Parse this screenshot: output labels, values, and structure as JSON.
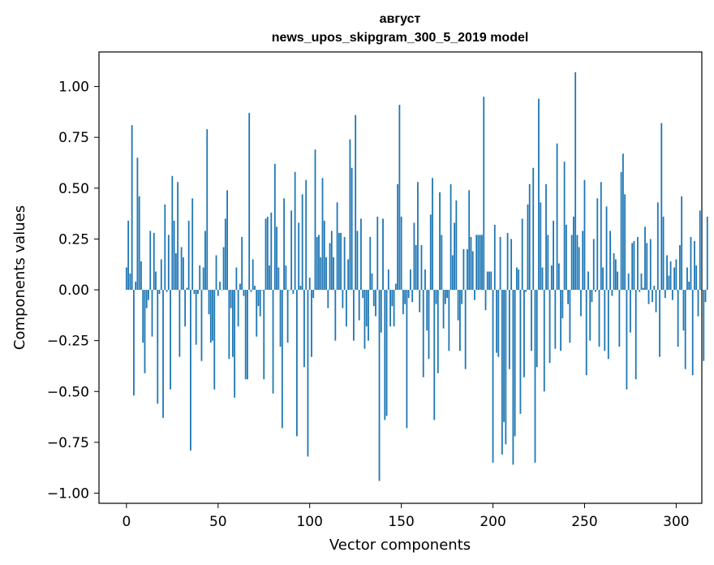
{
  "chart_data": {
    "type": "bar",
    "title": "август",
    "subtitle": "news_upos_skipgram_300_5_2019 model",
    "xlabel": "Vector components",
    "ylabel": "Components values",
    "xlim": [
      -15,
      314
    ],
    "ylim": [
      -1.05,
      1.17
    ],
    "xticks": [
      0,
      50,
      100,
      150,
      200,
      250,
      300
    ],
    "yticks": [
      -1.0,
      -0.75,
      -0.5,
      -0.25,
      0.0,
      0.25,
      0.5,
      0.75,
      1.0
    ],
    "ytick_labels": [
      "−1.00",
      "−0.75",
      "−0.50",
      "−0.25",
      "0.00",
      "0.25",
      "0.50",
      "0.75",
      "1.00"
    ],
    "bar_color": "#1f77b4",
    "values": [
      0.11,
      0.34,
      0.08,
      0.81,
      -0.52,
      0.04,
      0.65,
      0.46,
      0.14,
      -0.26,
      -0.41,
      -0.09,
      -0.05,
      0.29,
      -0.23,
      0.28,
      0.09,
      -0.56,
      -0.02,
      0.15,
      -0.63,
      0.42,
      -0.01,
      0.27,
      -0.49,
      0.56,
      0.34,
      0.18,
      0.53,
      -0.33,
      0.21,
      0.16,
      -0.18,
      0.01,
      0.34,
      -0.79,
      0.45,
      -0.02,
      -0.27,
      -0.02,
      0.12,
      -0.35,
      0.11,
      0.29,
      0.79,
      -0.12,
      -0.26,
      -0.25,
      -0.49,
      0.17,
      -0.03,
      0.04,
      0.0,
      0.21,
      0.35,
      0.49,
      -0.34,
      -0.09,
      -0.33,
      -0.53,
      0.11,
      -0.18,
      0.03,
      0.26,
      -0.03,
      -0.44,
      -0.44,
      0.87,
      -0.01,
      0.15,
      0.02,
      -0.23,
      -0.08,
      -0.13,
      0.0,
      -0.44,
      0.35,
      0.36,
      0.12,
      0.38,
      -0.51,
      0.62,
      0.31,
      0.11,
      -0.28,
      -0.68,
      0.45,
      0.12,
      -0.26,
      0.0,
      0.39,
      -0.02,
      0.58,
      -0.72,
      0.33,
      0.02,
      0.47,
      -0.38,
      0.54,
      -0.82,
      0.06,
      -0.33,
      -0.04,
      0.69,
      0.26,
      0.27,
      0.16,
      0.55,
      0.34,
      0.16,
      -0.09,
      0.23,
      0.29,
      0.16,
      -0.25,
      0.43,
      0.28,
      0.28,
      -0.09,
      0.26,
      -0.18,
      0.15,
      0.74,
      0.6,
      -0.25,
      0.86,
      0.29,
      -0.15,
      0.35,
      -0.04,
      -0.29,
      -0.18,
      -0.25,
      0.26,
      0.08,
      -0.08,
      -0.13,
      0.36,
      -0.94,
      -0.21,
      0.35,
      -0.64,
      -0.62,
      0.1,
      -0.18,
      -0.08,
      -0.18,
      0.03,
      0.52,
      0.91,
      0.36,
      -0.12,
      -0.07,
      -0.68,
      -0.04,
      0.1,
      -0.06,
      0.33,
      0.22,
      0.53,
      -0.11,
      0.22,
      -0.43,
      0.1,
      -0.2,
      -0.34,
      0.37,
      0.55,
      -0.64,
      -0.07,
      -0.41,
      0.48,
      0.27,
      -0.19,
      -0.07,
      -0.04,
      -0.3,
      0.52,
      0.17,
      0.33,
      0.44,
      -0.15,
      -0.3,
      -0.07,
      0.2,
      -0.39,
      0.2,
      0.49,
      0.26,
      0.19,
      -0.05,
      0.27,
      0.27,
      0.27,
      0.27,
      0.95,
      -0.1,
      0.09,
      0.09,
      0.09,
      -0.85,
      0.32,
      -0.31,
      -0.33,
      0.26,
      -0.81,
      -0.65,
      -0.76,
      0.28,
      -0.39,
      0.25,
      -0.86,
      -0.72,
      0.11,
      0.1,
      -0.61,
      0.35,
      -0.43,
      -0.01,
      0.42,
      0.52,
      -0.3,
      0.6,
      -0.85,
      -0.38,
      0.94,
      0.43,
      0.11,
      -0.5,
      0.52,
      0.27,
      -0.36,
      0.12,
      0.34,
      -0.29,
      0.72,
      0.13,
      -0.3,
      -0.14,
      0.63,
      0.32,
      -0.07,
      -0.26,
      0.27,
      0.36,
      1.07,
      0.27,
      0.21,
      -0.13,
      0.29,
      0.54,
      -0.42,
      0.09,
      -0.25,
      -0.06,
      0.25,
      -0.01,
      0.45,
      -0.28,
      0.53,
      0.11,
      -0.3,
      0.41,
      -0.34,
      0.29,
      -0.03,
      0.18,
      0.15,
      0.09,
      -0.28,
      0.58,
      0.67,
      0.47,
      -0.49,
      0.08,
      -0.21,
      0.23,
      0.24,
      -0.44,
      0.26,
      -0.01,
      0.08,
      0.01,
      0.31,
      0.23,
      -0.07,
      0.25,
      -0.06,
      0.02,
      -0.11,
      0.43,
      -0.33,
      0.82,
      0.36,
      -0.04,
      0.17,
      0.07,
      0.14,
      -0.05,
      0.11,
      0.15,
      -0.28,
      0.22,
      0.46,
      -0.2,
      -0.39,
      0.11,
      0.04,
      0.26,
      -0.42,
      0.24,
      0.12,
      -0.13,
      0.39,
      0.0,
      -0.35,
      -0.06,
      0.36
    ]
  }
}
